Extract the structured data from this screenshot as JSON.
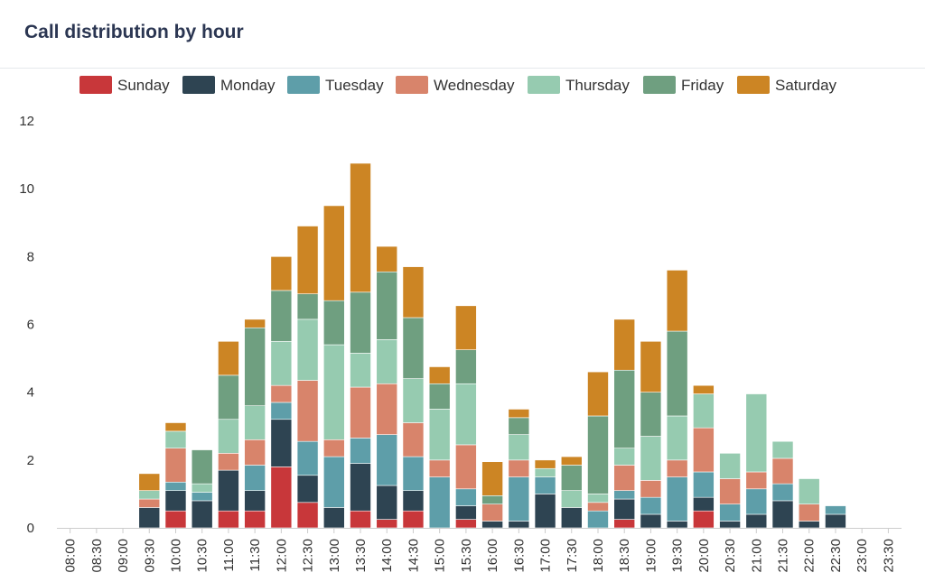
{
  "header": {
    "title": "Call distribution by hour"
  },
  "chart_data": {
    "type": "bar",
    "stacked": true,
    "categories": [
      "08:00",
      "08:30",
      "09:00",
      "09:30",
      "10:00",
      "10:30",
      "11:00",
      "11:30",
      "12:00",
      "12:30",
      "13:00",
      "13:30",
      "14:00",
      "14:30",
      "15:00",
      "15:30",
      "16:00",
      "16:30",
      "17:00",
      "17:30",
      "18:00",
      "18:30",
      "19:00",
      "19:30",
      "20:00",
      "20:30",
      "21:00",
      "21:30",
      "22:00",
      "22:30",
      "23:00",
      "23:30"
    ],
    "ylim": [
      0,
      12
    ],
    "yticks": [
      0,
      2,
      4,
      6,
      8,
      10,
      12
    ],
    "legend_position": "top",
    "grid": false,
    "series": [
      {
        "name": "Sunday",
        "color": "#c8373a",
        "values": [
          0,
          0,
          0,
          0,
          0.5,
          0,
          0.5,
          0.5,
          1.8,
          0.75,
          0,
          0.5,
          0.25,
          0.5,
          0,
          0.25,
          0,
          0,
          0,
          0,
          0,
          0.25,
          0,
          0,
          0.5,
          0,
          0,
          0,
          0,
          0,
          0,
          0
        ]
      },
      {
        "name": "Monday",
        "color": "#2e4452",
        "values": [
          0,
          0,
          0,
          0.6,
          0.6,
          0.8,
          1.2,
          0.6,
          1.4,
          0.8,
          0.6,
          1.4,
          1.0,
          0.6,
          0,
          0.4,
          0.2,
          0.2,
          1.0,
          0.6,
          0,
          0.6,
          0.4,
          0.2,
          0.4,
          0.2,
          0.4,
          0.8,
          0.2,
          0.4,
          0,
          0
        ]
      },
      {
        "name": "Tuesday",
        "color": "#5e9ea9",
        "values": [
          0,
          0,
          0,
          0,
          0.25,
          0.25,
          0,
          0.75,
          0.5,
          1.0,
          1.5,
          0.75,
          1.5,
          1.0,
          1.5,
          0.5,
          0,
          1.3,
          0.5,
          0,
          0.5,
          0.25,
          0.5,
          1.3,
          0.75,
          0.5,
          0.75,
          0.5,
          0,
          0.25,
          0,
          0
        ]
      },
      {
        "name": "Wednesday",
        "color": "#d8846b",
        "values": [
          0,
          0,
          0,
          0.25,
          1.0,
          0,
          0.5,
          0.75,
          0.5,
          1.8,
          0.5,
          1.5,
          1.5,
          1.0,
          0.5,
          1.3,
          0.5,
          0.5,
          0,
          0,
          0.25,
          0.75,
          0.5,
          0.5,
          1.3,
          0.75,
          0.5,
          0.75,
          0.5,
          0,
          0,
          0
        ]
      },
      {
        "name": "Thursday",
        "color": "#96cbb0",
        "values": [
          0,
          0,
          0,
          0.25,
          0.5,
          0.25,
          1.0,
          1.0,
          1.3,
          1.8,
          2.8,
          1.0,
          1.3,
          1.3,
          1.5,
          1.8,
          0,
          0.75,
          0.25,
          0.5,
          0.25,
          0.5,
          1.3,
          1.3,
          1.0,
          0.75,
          2.3,
          0.5,
          0.75,
          0,
          0,
          0
        ]
      },
      {
        "name": "Friday",
        "color": "#6f9f80",
        "values": [
          0,
          0,
          0,
          0,
          0,
          1.0,
          1.3,
          2.3,
          1.5,
          0.75,
          1.3,
          1.8,
          2.0,
          1.8,
          0.75,
          1.0,
          0.25,
          0.5,
          0,
          0.75,
          2.3,
          2.3,
          1.3,
          2.5,
          0,
          0,
          0,
          0,
          0,
          0,
          0,
          0
        ]
      },
      {
        "name": "Saturday",
        "color": "#cc8524",
        "values": [
          0,
          0,
          0,
          0.5,
          0.25,
          0,
          1.0,
          0.25,
          1.0,
          2.0,
          2.8,
          3.8,
          0.75,
          1.5,
          0.5,
          1.3,
          1.0,
          0.25,
          0.25,
          0.25,
          1.3,
          1.5,
          1.5,
          1.8,
          0.25,
          0,
          0,
          0,
          0,
          0,
          0,
          0
        ]
      }
    ]
  }
}
